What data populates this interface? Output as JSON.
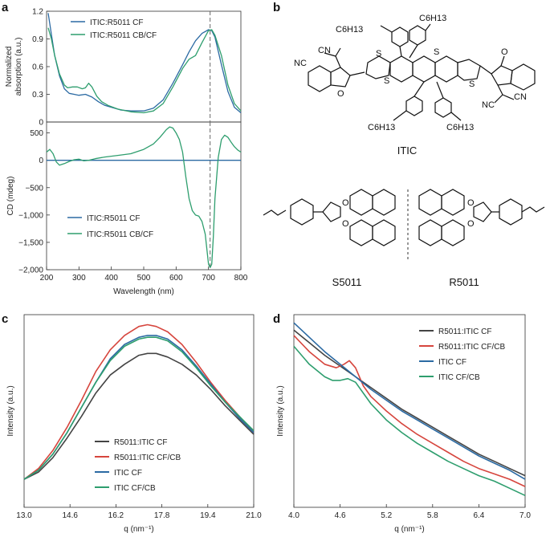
{
  "colors": {
    "blue": "#2b6aa3",
    "green": "#2e9e6e",
    "black": "#444444",
    "red": "#d6453d"
  },
  "panels": {
    "a_label": "a",
    "b_label": "b",
    "c_label": "c",
    "d_label": "d"
  },
  "structures": {
    "itic_name": "ITIC",
    "s5011_name": "S5011",
    "r5011_name": "R5011",
    "labels": [
      "C6H13",
      "NC",
      "CN",
      "S",
      "O"
    ]
  },
  "chart_data": [
    {
      "id": "a_top",
      "type": "line",
      "ylabel": "Normalized\nabsorption (a.u.)",
      "xlim": [
        200,
        800
      ],
      "ylim": [
        0,
        1.2
      ],
      "yticks": [
        "0",
        "0.3",
        "0.6",
        "0.9",
        "1.2"
      ],
      "ytick_values": [
        0,
        0.3,
        0.6,
        0.9,
        1.2
      ],
      "series": [
        {
          "name": "ITIC:R5011 CF",
          "color": "blue",
          "x": [
            205,
            215,
            225,
            240,
            255,
            270,
            285,
            300,
            320,
            340,
            360,
            380,
            400,
            430,
            460,
            500,
            530,
            560,
            590,
            620,
            640,
            660,
            680,
            700,
            710,
            720,
            740,
            760,
            780,
            800
          ],
          "y": [
            1.18,
            0.95,
            0.72,
            0.5,
            0.36,
            0.31,
            0.3,
            0.29,
            0.3,
            0.27,
            0.22,
            0.18,
            0.16,
            0.13,
            0.12,
            0.12,
            0.15,
            0.24,
            0.42,
            0.62,
            0.76,
            0.88,
            0.96,
            1.0,
            0.99,
            0.92,
            0.62,
            0.33,
            0.16,
            0.1
          ]
        },
        {
          "name": "ITIC:R5011 CB/CF",
          "color": "green",
          "x": [
            205,
            215,
            225,
            240,
            255,
            265,
            280,
            295,
            310,
            320,
            330,
            340,
            355,
            370,
            390,
            420,
            460,
            500,
            530,
            560,
            590,
            620,
            640,
            660,
            680,
            700,
            710,
            720,
            740,
            760,
            780,
            800
          ],
          "y": [
            1.02,
            0.9,
            0.72,
            0.52,
            0.4,
            0.37,
            0.38,
            0.38,
            0.36,
            0.37,
            0.42,
            0.38,
            0.28,
            0.22,
            0.18,
            0.14,
            0.11,
            0.1,
            0.12,
            0.2,
            0.38,
            0.58,
            0.68,
            0.72,
            0.86,
            0.99,
            1.0,
            0.94,
            0.72,
            0.4,
            0.2,
            0.12
          ]
        }
      ],
      "vline_x": 705
    },
    {
      "id": "a_bottom",
      "type": "line",
      "xlabel": "Wavelength (nm)",
      "ylabel": "CD (mdeg)",
      "xlim": [
        200,
        800
      ],
      "ylim": [
        -2000,
        700
      ],
      "xticks": [
        "200",
        "300",
        "400",
        "500",
        "600",
        "700",
        "800"
      ],
      "xtick_values": [
        200,
        300,
        400,
        500,
        600,
        700,
        800
      ],
      "yticks": [
        "−2,000",
        "−1,500",
        "−1,000",
        "−500",
        "0",
        "500"
      ],
      "ytick_values": [
        -2000,
        -1500,
        -1000,
        -500,
        0,
        500
      ],
      "series": [
        {
          "name": "ITIC:R5011 CF",
          "color": "blue",
          "x": [
            200,
            800
          ],
          "y": [
            0,
            0
          ]
        },
        {
          "name": "ITIC:R5011 CB/CF",
          "color": "green",
          "x": [
            200,
            210,
            220,
            230,
            240,
            255,
            270,
            285,
            300,
            315,
            330,
            350,
            380,
            420,
            460,
            500,
            530,
            550,
            570,
            580,
            590,
            600,
            610,
            620,
            630,
            640,
            650,
            660,
            670,
            680,
            690,
            700,
            705,
            710,
            715,
            720,
            730,
            740,
            750,
            760,
            770,
            780,
            790,
            800
          ],
          "y": [
            150,
            200,
            120,
            -30,
            -90,
            -60,
            -20,
            10,
            20,
            -10,
            0,
            30,
            60,
            90,
            120,
            200,
            300,
            420,
            560,
            610,
            590,
            500,
            380,
            150,
            -300,
            -700,
            -920,
            -1000,
            -1020,
            -1120,
            -1350,
            -1900,
            -1960,
            -1900,
            -1400,
            -700,
            50,
            380,
            460,
            420,
            330,
            250,
            190,
            150
          ]
        }
      ],
      "vline_x": 705
    },
    {
      "id": "c",
      "type": "line",
      "xlabel": "q (nm⁻¹)",
      "ylabel": "Intensity (a.u.)",
      "xlim": [
        13.0,
        21.0
      ],
      "ylim": [
        0,
        1
      ],
      "xticks": [
        "13.0",
        "14.6",
        "16.2",
        "17.8",
        "19.4",
        "21.0"
      ],
      "xtick_values": [
        13.0,
        14.6,
        16.2,
        17.8,
        19.4,
        21.0
      ],
      "series": [
        {
          "name": "R5011:ITIC CF",
          "color": "black",
          "x": [
            13.0,
            13.5,
            14.0,
            14.5,
            15.0,
            15.5,
            16.0,
            16.5,
            17.0,
            17.3,
            17.6,
            18.0,
            18.5,
            19.0,
            19.5,
            20.0,
            20.5,
            21.0
          ],
          "y": [
            0.12,
            0.16,
            0.24,
            0.35,
            0.47,
            0.6,
            0.7,
            0.76,
            0.81,
            0.82,
            0.82,
            0.8,
            0.76,
            0.7,
            0.62,
            0.53,
            0.45,
            0.37
          ]
        },
        {
          "name": "R5011:ITIC CF/CB",
          "color": "red",
          "x": [
            13.0,
            13.5,
            14.0,
            14.5,
            15.0,
            15.5,
            16.0,
            16.5,
            17.0,
            17.3,
            17.6,
            18.0,
            18.5,
            19.0,
            19.5,
            20.0,
            20.5,
            21.0
          ],
          "y": [
            0.12,
            0.18,
            0.28,
            0.41,
            0.56,
            0.72,
            0.84,
            0.92,
            0.97,
            0.98,
            0.97,
            0.94,
            0.87,
            0.77,
            0.66,
            0.56,
            0.47,
            0.38
          ]
        },
        {
          "name": "ITIC CF",
          "color": "blue",
          "x": [
            13.0,
            13.5,
            14.0,
            14.5,
            15.0,
            15.5,
            16.0,
            16.5,
            17.0,
            17.3,
            17.6,
            18.0,
            18.5,
            19.0,
            19.5,
            20.0,
            20.5,
            21.0
          ],
          "y": [
            0.12,
            0.17,
            0.26,
            0.38,
            0.52,
            0.66,
            0.79,
            0.87,
            0.91,
            0.92,
            0.92,
            0.9,
            0.84,
            0.75,
            0.65,
            0.55,
            0.46,
            0.38
          ]
        },
        {
          "name": "ITIC CF/CB",
          "color": "green",
          "x": [
            13.0,
            13.5,
            14.0,
            14.5,
            15.0,
            15.5,
            16.0,
            16.5,
            17.0,
            17.3,
            17.6,
            18.0,
            18.5,
            19.0,
            19.5,
            20.0,
            20.5,
            21.0
          ],
          "y": [
            0.12,
            0.17,
            0.26,
            0.38,
            0.52,
            0.66,
            0.78,
            0.86,
            0.9,
            0.91,
            0.91,
            0.89,
            0.83,
            0.74,
            0.64,
            0.55,
            0.47,
            0.39
          ]
        }
      ],
      "legend": "bottom-center"
    },
    {
      "id": "d",
      "type": "line",
      "xlabel": "q (nm⁻¹)",
      "ylabel": "Intensity (a.u.)",
      "xlim": [
        4.0,
        7.0
      ],
      "ylim": [
        0,
        1
      ],
      "xticks": [
        "4.0",
        "4.6",
        "5.2",
        "5.8",
        "6.4",
        "7.0"
      ],
      "xtick_values": [
        4.0,
        4.6,
        5.2,
        5.8,
        6.4,
        7.0
      ],
      "series": [
        {
          "name": "R5011:ITIC CF",
          "color": "black",
          "x": [
            4.0,
            4.2,
            4.4,
            4.6,
            4.8,
            5.0,
            5.2,
            5.4,
            5.6,
            5.8,
            6.0,
            6.2,
            6.4,
            6.6,
            6.8,
            7.0
          ],
          "y": [
            0.95,
            0.88,
            0.81,
            0.75,
            0.69,
            0.63,
            0.57,
            0.51,
            0.46,
            0.41,
            0.36,
            0.31,
            0.26,
            0.22,
            0.18,
            0.14
          ]
        },
        {
          "name": "R5011:ITIC CF/CB",
          "color": "red",
          "x": [
            4.0,
            4.2,
            4.4,
            4.55,
            4.65,
            4.72,
            4.8,
            4.9,
            5.0,
            5.2,
            5.4,
            5.6,
            5.8,
            6.0,
            6.2,
            6.4,
            6.6,
            6.8,
            7.0
          ],
          "y": [
            0.92,
            0.83,
            0.76,
            0.74,
            0.76,
            0.78,
            0.74,
            0.64,
            0.58,
            0.5,
            0.43,
            0.37,
            0.32,
            0.27,
            0.22,
            0.18,
            0.15,
            0.12,
            0.08
          ]
        },
        {
          "name": "ITIC CF",
          "color": "blue",
          "x": [
            4.0,
            4.2,
            4.4,
            4.6,
            4.8,
            5.0,
            5.2,
            5.4,
            5.6,
            5.8,
            6.0,
            6.2,
            6.4,
            6.6,
            6.8,
            7.0
          ],
          "y": [
            0.99,
            0.91,
            0.83,
            0.76,
            0.69,
            0.62,
            0.56,
            0.5,
            0.45,
            0.4,
            0.35,
            0.3,
            0.25,
            0.21,
            0.17,
            0.12
          ]
        },
        {
          "name": "ITIC CF/CB",
          "color": "green",
          "x": [
            4.0,
            4.2,
            4.4,
            4.5,
            4.6,
            4.7,
            4.8,
            4.9,
            5.0,
            5.2,
            5.4,
            5.6,
            5.8,
            6.0,
            6.2,
            6.4,
            6.6,
            6.8,
            7.0
          ],
          "y": [
            0.86,
            0.76,
            0.69,
            0.67,
            0.67,
            0.68,
            0.66,
            0.6,
            0.54,
            0.45,
            0.38,
            0.32,
            0.27,
            0.22,
            0.18,
            0.14,
            0.11,
            0.07,
            0.03
          ]
        }
      ],
      "legend": "top-right"
    }
  ]
}
